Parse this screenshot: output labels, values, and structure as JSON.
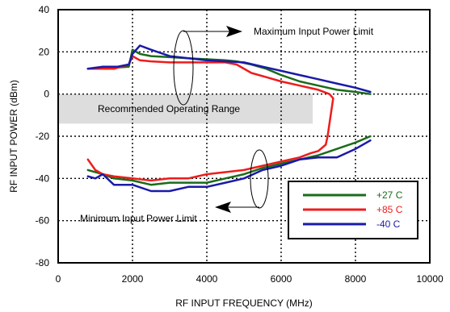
{
  "chart_data": {
    "type": "line",
    "xlabel": "RF INPUT FREQUENCY (MHz)",
    "ylabel": "RF INPUT POWER (dBm)",
    "xlim": [
      0,
      10000
    ],
    "ylim": [
      -80,
      40
    ],
    "xticks": [
      0,
      2000,
      4000,
      6000,
      8000,
      10000
    ],
    "yticks": [
      -80,
      -60,
      -40,
      -20,
      0,
      20,
      40
    ],
    "grid": "dotted",
    "legend_placement": "lower-right",
    "region": {
      "label": "Recommended Operating Range",
      "x": [
        0,
        6850
      ],
      "y": [
        -14,
        0
      ],
      "color": "#dddddd"
    },
    "annotations": [
      {
        "text": "Maximum Input Power Limit"
      },
      {
        "text": "Minimum Input Power Limit"
      }
    ],
    "series": [
      {
        "name": "+27 C",
        "color": "#1a6b1a",
        "upper": [
          [
            800,
            12
          ],
          [
            1500,
            12.5
          ],
          [
            1900,
            13
          ],
          [
            2000,
            21
          ],
          [
            2200,
            19
          ],
          [
            2500,
            18
          ],
          [
            3000,
            17.5
          ],
          [
            3500,
            17
          ],
          [
            4000,
            16.5
          ],
          [
            4500,
            16
          ],
          [
            4800,
            15.5
          ],
          [
            5200,
            14
          ],
          [
            5600,
            12
          ],
          [
            6000,
            9
          ],
          [
            6500,
            6
          ],
          [
            7000,
            4
          ],
          [
            7500,
            2
          ],
          [
            8000,
            1
          ],
          [
            8400,
            0
          ]
        ],
        "lower": [
          [
            800,
            -36
          ],
          [
            1200,
            -38
          ],
          [
            1500,
            -40
          ],
          [
            2000,
            -41
          ],
          [
            2500,
            -43
          ],
          [
            3000,
            -42
          ],
          [
            3500,
            -42
          ],
          [
            4000,
            -42
          ],
          [
            4500,
            -40
          ],
          [
            5000,
            -38
          ],
          [
            5500,
            -35
          ],
          [
            6000,
            -33
          ],
          [
            6500,
            -31
          ],
          [
            7000,
            -29
          ],
          [
            7500,
            -26
          ],
          [
            8000,
            -23
          ],
          [
            8400,
            -20
          ]
        ]
      },
      {
        "name": "+85 C",
        "color": "#ee1c1c",
        "upper": [
          [
            800,
            12
          ],
          [
            1500,
            12
          ],
          [
            1900,
            14
          ],
          [
            2000,
            18
          ],
          [
            2200,
            16
          ],
          [
            2500,
            15.5
          ],
          [
            3000,
            15
          ],
          [
            3500,
            15
          ],
          [
            4000,
            15
          ],
          [
            4500,
            15
          ],
          [
            4800,
            14
          ],
          [
            5200,
            10
          ],
          [
            5600,
            8
          ],
          [
            6000,
            6
          ],
          [
            6500,
            4
          ],
          [
            7000,
            2
          ],
          [
            7300,
            0
          ],
          [
            7400,
            -2
          ],
          [
            7350,
            -8
          ],
          [
            7300,
            -14
          ],
          [
            7250,
            -20
          ],
          [
            7200,
            -24
          ]
        ],
        "lower": [
          [
            800,
            -31
          ],
          [
            1000,
            -36
          ],
          [
            1200,
            -38
          ],
          [
            1500,
            -39
          ],
          [
            2000,
            -40
          ],
          [
            2500,
            -41
          ],
          [
            3000,
            -40
          ],
          [
            3500,
            -40
          ],
          [
            4000,
            -38
          ],
          [
            4500,
            -37
          ],
          [
            5000,
            -36
          ],
          [
            5500,
            -34
          ],
          [
            6000,
            -32
          ],
          [
            6500,
            -30
          ],
          [
            6800,
            -28
          ],
          [
            7000,
            -27
          ],
          [
            7200,
            -24
          ]
        ]
      },
      {
        "name": "-40 C",
        "color": "#1a1aa8",
        "upper": [
          [
            800,
            12
          ],
          [
            1200,
            13
          ],
          [
            1600,
            13
          ],
          [
            1900,
            14
          ],
          [
            2000,
            19
          ],
          [
            2200,
            23
          ],
          [
            2500,
            21
          ],
          [
            3000,
            18
          ],
          [
            3500,
            17
          ],
          [
            4000,
            16
          ],
          [
            4500,
            15.5
          ],
          [
            5000,
            15
          ],
          [
            5500,
            13
          ],
          [
            6000,
            11
          ],
          [
            6500,
            9
          ],
          [
            7000,
            7
          ],
          [
            7500,
            5
          ],
          [
            8000,
            3
          ],
          [
            8400,
            1
          ]
        ],
        "lower": [
          [
            800,
            -39
          ],
          [
            1000,
            -40
          ],
          [
            1200,
            -38
          ],
          [
            1500,
            -43
          ],
          [
            2000,
            -43
          ],
          [
            2500,
            -46
          ],
          [
            3000,
            -46
          ],
          [
            3500,
            -44
          ],
          [
            4000,
            -44
          ],
          [
            4500,
            -42
          ],
          [
            5000,
            -40
          ],
          [
            5500,
            -36
          ],
          [
            6000,
            -34
          ],
          [
            6500,
            -31
          ],
          [
            7000,
            -30
          ],
          [
            7500,
            -30
          ],
          [
            8000,
            -26
          ],
          [
            8400,
            -22
          ]
        ]
      }
    ]
  }
}
